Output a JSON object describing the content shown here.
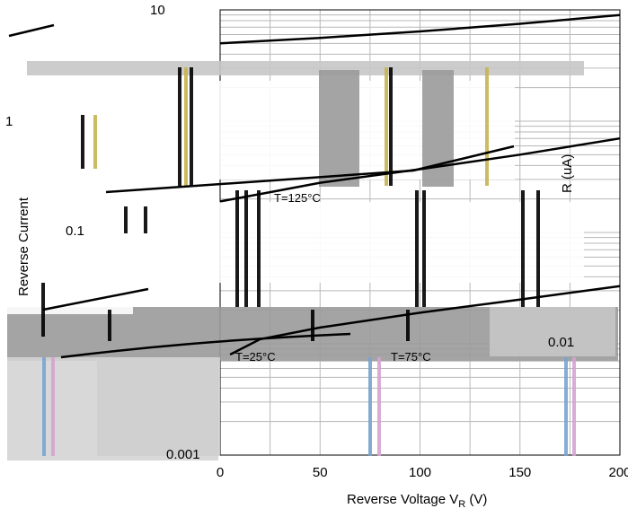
{
  "chart_data": {
    "type": "line",
    "title": "",
    "xlabel": "Reverse Voltage V",
    "xlabel_sub": "R",
    "xlabel_unit": " (V)",
    "ylabel": "Reverse Current",
    "ylabel_secondary": "R (uA)",
    "xlim": [
      0,
      200
    ],
    "ylim": [
      0.001,
      10
    ],
    "y_scale": "log",
    "x_ticks": [
      "0",
      "50",
      "100",
      "150",
      "200"
    ],
    "y_ticks": [
      "10",
      "1",
      "0.1",
      "0.01",
      "0.001"
    ],
    "grid": true,
    "annotations": [
      "T=125°C",
      "T=75°C",
      "T=25°C"
    ],
    "series": [
      {
        "x": [
          5,
          20,
          50,
          100,
          150,
          200
        ],
        "values": [
          0.008,
          0.011,
          0.014,
          0.019,
          0.025,
          0.033
        ]
      },
      {
        "x": [
          0,
          25,
          50,
          100,
          150,
          200
        ],
        "values": [
          0.19,
          0.23,
          0.28,
          0.37,
          0.5,
          0.7
        ]
      },
      {
        "x": [
          0,
          50,
          100,
          150,
          200
        ],
        "values": [
          5.0,
          5.6,
          6.4,
          7.5,
          9.0
        ]
      }
    ]
  }
}
